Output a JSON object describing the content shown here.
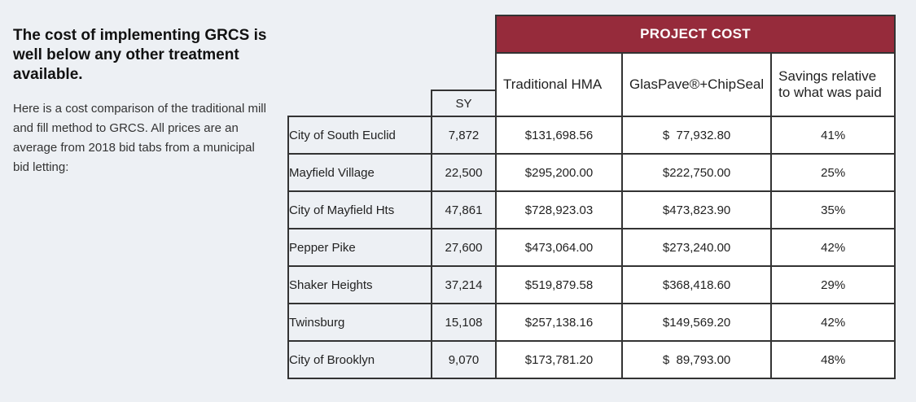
{
  "intro": {
    "headline": "The cost of implementing GRCS is well below any other treatment available.",
    "body": "Here is a cost comparison of the traditional mill and fill method to GRCS. All prices are an average from 2018 bid tabs from a municipal bid letting:"
  },
  "table": {
    "banner": "PROJECT COST",
    "sy_header": "SY",
    "col_traditional": "Traditional HMA",
    "col_glaspave": "GlasPave®+ChipSeal",
    "col_savings": "Savings relative to what was paid",
    "rows": [
      {
        "city": "City of South Euclid",
        "sy": "7,872",
        "traditional": "$131,698.56",
        "glaspave": "$  77,932.80",
        "savings": "41%"
      },
      {
        "city": "Mayfield Village",
        "sy": "22,500",
        "traditional": "$295,200.00",
        "glaspave": "$222,750.00",
        "savings": "25%"
      },
      {
        "city": "City of Mayfield Hts",
        "sy": "47,861",
        "traditional": "$728,923.03",
        "glaspave": "$473,823.90",
        "savings": "35%"
      },
      {
        "city": "Pepper Pike",
        "sy": "27,600",
        "traditional": "$473,064.00",
        "glaspave": "$273,240.00",
        "savings": "42%"
      },
      {
        "city": "Shaker Heights",
        "sy": "37,214",
        "traditional": "$519,879.58",
        "glaspave": "$368,418.60",
        "savings": "29%"
      },
      {
        "city": "Twinsburg",
        "sy": "15,108",
        "traditional": "$257,138.16",
        "glaspave": "$149,569.20",
        "savings": "42%"
      },
      {
        "city": "City of Brooklyn",
        "sy": "9,070",
        "traditional": "$173,781.20",
        "glaspave": "$  89,793.00",
        "savings": "48%"
      }
    ]
  },
  "colors": {
    "banner": "#962b3b",
    "background": "#edf0f4"
  }
}
